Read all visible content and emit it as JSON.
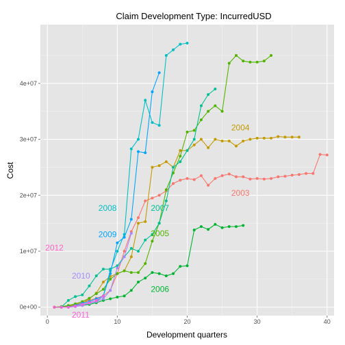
{
  "chart_data": {
    "type": "line",
    "title": "Claim Development  Type: IncurredUSD",
    "xlabel": "Development quarters",
    "ylabel": "Cost",
    "xlim": [
      -1,
      41
    ],
    "ylim": [
      -1500000,
      50500000
    ],
    "x_ticks": [
      0,
      10,
      20,
      30,
      40
    ],
    "x_tick_labels": [
      "0",
      "10",
      "20",
      "30",
      "40"
    ],
    "y_ticks": [
      0,
      10000000,
      20000000,
      30000000,
      40000000
    ],
    "y_tick_labels": [
      "0e+00",
      "1e+07",
      "2e+07",
      "3e+07",
      "4e+07"
    ],
    "grid": true,
    "legend": "none",
    "series": [
      {
        "name": "2003",
        "color": "#F8766D",
        "label_x": 26.3,
        "label_y": 20400000,
        "x": [
          1,
          2,
          3,
          4,
          5,
          6,
          7,
          8,
          9,
          10,
          11,
          12,
          13,
          14,
          15,
          16,
          17,
          18,
          19,
          20,
          21,
          22,
          23,
          24,
          25,
          26,
          27,
          28,
          29,
          30,
          31,
          32,
          33,
          34,
          35,
          36,
          37,
          38,
          39,
          40
        ],
        "y": [
          0,
          0,
          200000,
          500000,
          800000,
          1200000,
          1600000,
          2000000,
          3000000,
          6000000,
          10000000,
          13500000,
          16000000,
          19000000,
          19500000,
          20000000,
          20800000,
          22100000,
          22700000,
          23000000,
          22800000,
          23500000,
          21800000,
          23000000,
          23500000,
          23800000,
          23300000,
          23300000,
          22900000,
          23000000,
          22900000,
          23000000,
          23300000,
          23400000,
          23600000,
          23700000,
          23900000,
          23900000,
          27300000,
          27200000
        ]
      },
      {
        "name": "2004",
        "color": "#C49A00",
        "label_x": 26.3,
        "label_y": 32100000,
        "x": [
          1,
          2,
          3,
          4,
          5,
          6,
          7,
          8,
          9,
          10,
          11,
          12,
          13,
          14,
          15,
          16,
          17,
          18,
          19,
          20,
          21,
          22,
          23,
          24,
          25,
          26,
          27,
          28,
          29,
          30,
          31,
          32,
          33,
          34,
          35,
          36
        ],
        "y": [
          0,
          0,
          200000,
          400000,
          700000,
          1500000,
          2500000,
          4500000,
          5500000,
          6000000,
          6500000,
          9000000,
          15000000,
          15300000,
          25000000,
          25300000,
          26000000,
          25000000,
          28000000,
          28000000,
          29000000,
          30000000,
          28500000,
          30000000,
          29700000,
          29700000,
          28800000,
          29700000,
          30000000,
          30200000,
          30200000,
          30200000,
          30500000,
          30400000,
          30400000,
          30400000
        ]
      },
      {
        "name": "2005",
        "color": "#53B400",
        "label_x": 14.8,
        "label_y": 13200000,
        "x": [
          1,
          2,
          3,
          4,
          5,
          6,
          7,
          8,
          9,
          10,
          11,
          12,
          13,
          14,
          15,
          16,
          17,
          18,
          19,
          20,
          21,
          22,
          23,
          24,
          25,
          26,
          27,
          28,
          29,
          30,
          31,
          32
        ],
        "y": [
          0,
          100000,
          300000,
          600000,
          1000000,
          1600000,
          2400000,
          3200000,
          5000000,
          6000000,
          6500000,
          6200000,
          6200000,
          7800000,
          11800000,
          15000000,
          21000000,
          24000000,
          27000000,
          31300000,
          31600000,
          33500000,
          35000000,
          36000000,
          35000000,
          43600000,
          45000000,
          44000000,
          43800000,
          43800000,
          44000000,
          45000000
        ]
      },
      {
        "name": "2006",
        "color": "#00B433",
        "label_x": 14.8,
        "label_y": 3200000,
        "x": [
          1,
          2,
          3,
          4,
          5,
          6,
          7,
          8,
          9,
          10,
          11,
          12,
          13,
          14,
          15,
          16,
          17,
          18,
          19,
          20,
          21,
          22,
          23,
          24,
          25,
          26,
          27,
          28
        ],
        "y": [
          0,
          0,
          100000,
          200000,
          300000,
          500000,
          800000,
          1200000,
          1500000,
          1800000,
          2000000,
          3000000,
          4500000,
          5200000,
          6200000,
          6000000,
          5600000,
          6000000,
          7300000,
          7400000,
          13800000,
          14400000,
          13900000,
          14800000,
          14200000,
          14400000,
          14400000,
          14600000
        ]
      },
      {
        "name": "2007",
        "color": "#00C094",
        "label_x": 14.8,
        "label_y": 17700000,
        "x": [
          2,
          3,
          4,
          5,
          6,
          7,
          8,
          9,
          10,
          11,
          12,
          13,
          14,
          15,
          16,
          17,
          18,
          19,
          20,
          21,
          22,
          23,
          24
        ],
        "y": [
          0,
          1200000,
          1900000,
          2200000,
          3800000,
          5600000,
          6800000,
          6800000,
          7400000,
          9000000,
          10500000,
          10000000,
          12000000,
          13000000,
          15000000,
          19000000,
          25000000,
          26000000,
          28000000,
          30000000,
          36000000,
          38000000,
          39000000
        ]
      },
      {
        "name": "2008",
        "color": "#00BFC4",
        "label_x": 7.3,
        "label_y": 17700000,
        "x": [
          4,
          5,
          6,
          7,
          8,
          9,
          10,
          11,
          12,
          13,
          14,
          15,
          16,
          17,
          18,
          19,
          20
        ],
        "y": [
          200000,
          400000,
          700000,
          1000000,
          2000000,
          6500000,
          10000000,
          13000000,
          28300000,
          30000000,
          37000000,
          33000000,
          32500000,
          45000000,
          46000000,
          47000000,
          47200000
        ]
      },
      {
        "name": "2009",
        "color": "#00A5FF",
        "label_x": 7.3,
        "label_y": 13000000,
        "x": [
          3,
          4,
          5,
          6,
          7,
          8,
          9,
          10,
          11,
          12,
          13,
          14,
          15,
          16
        ],
        "y": [
          0,
          300000,
          700000,
          1000000,
          1500000,
          2000000,
          6000000,
          11500000,
          12500000,
          15700000,
          27800000,
          27600000,
          38500000,
          41900000
        ]
      },
      {
        "name": "2010",
        "color": "#A58AFF",
        "label_x": 3.5,
        "label_y": 5600000,
        "x": [
          2,
          3,
          4,
          5,
          6,
          7,
          8,
          9,
          10,
          11,
          12
        ],
        "y": [
          0,
          0,
          100000,
          300000,
          700000,
          1000000,
          1500000,
          3000000,
          7000000,
          9000000,
          13200000
        ]
      },
      {
        "name": "2011",
        "color": "#FB61D7",
        "label_x": 3.5,
        "label_y": -1400000,
        "x": [
          1,
          2,
          3,
          4,
          5,
          6,
          7,
          8
        ],
        "y": [
          0,
          0,
          0,
          200000,
          500000,
          800000,
          1200000,
          2000000
        ]
      },
      {
        "name": "2012",
        "color": "#FF61C3",
        "label_x": -0.3,
        "label_y": 10600000,
        "x": [
          1
        ],
        "y": [
          0
        ]
      }
    ]
  }
}
